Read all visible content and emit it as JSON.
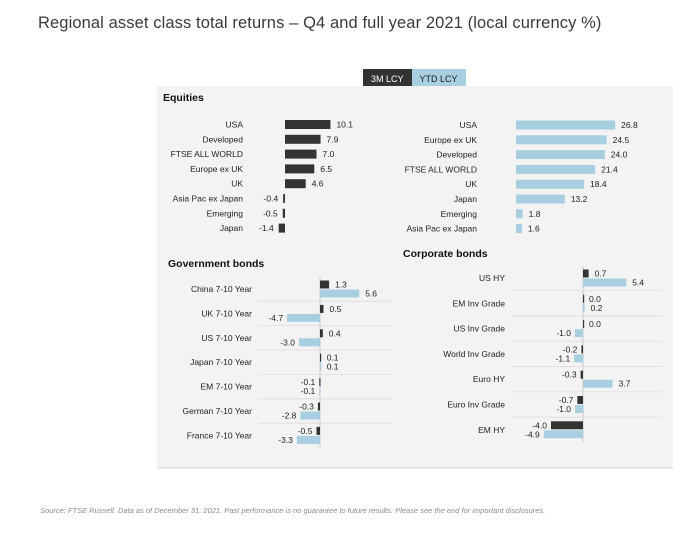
{
  "title": "Regional asset class total returns – Q4 and full year 2021 (local currency %)",
  "legend": {
    "series1": "3M LCY",
    "series2": "YTD LCY"
  },
  "footer": "Source: FTSE Russell. Data as of December 31, 2021. Past performance is no guarantee to future results. Please see the end for important disclosures.",
  "colors": {
    "series1": "#333333",
    "series2": "#a8cfe0"
  },
  "chart_data": [
    {
      "type": "bar",
      "title": "Equities",
      "subtitle": "3M LCY",
      "categories": [
        "USA",
        "Developed",
        "FTSE ALL WORLD",
        "Europe ex UK",
        "UK",
        "Asia Pac ex Japan",
        "Emerging",
        "Japan"
      ],
      "values": [
        10.1,
        7.9,
        7.0,
        6.5,
        4.6,
        -0.4,
        -0.5,
        -1.4
      ],
      "value_labels": [
        "10.1",
        "7.9",
        "7.0",
        "6.5",
        "4.6",
        "-0.4",
        "-0.5",
        "-1.4"
      ]
    },
    {
      "type": "bar",
      "title": "",
      "subtitle": "YTD LCY",
      "categories": [
        "USA",
        "Europe ex UK",
        "Developed",
        "FTSE ALL WORLD",
        "UK",
        "Japan",
        "Emerging",
        "Asia Pac ex Japan"
      ],
      "values": [
        26.8,
        24.5,
        24.0,
        21.4,
        18.4,
        13.2,
        1.8,
        1.6
      ],
      "value_labels": [
        "26.8",
        "24.5",
        "24.0",
        "21.4",
        "18.4",
        "13.2",
        "1.8",
        "1.6"
      ]
    },
    {
      "type": "bar",
      "title": "Government bonds",
      "categories": [
        "China 7-10 Year",
        "UK 7-10 Year",
        "US 7-10 Year",
        "Japan 7-10 Year",
        "EM 7-10 Year",
        "German 7-10 Year",
        "France 7-10 Year"
      ],
      "series": [
        {
          "name": "3M LCY",
          "values": [
            1.3,
            0.5,
            0.4,
            0.1,
            -0.1,
            -0.3,
            -0.5
          ],
          "labels": [
            "1.3",
            "0.5",
            "0.4",
            "0.1",
            "-0.1",
            "-0.3",
            "-0.5"
          ]
        },
        {
          "name": "YTD LCY",
          "values": [
            5.6,
            -4.7,
            -3.0,
            0.1,
            -0.1,
            -2.8,
            -3.3
          ],
          "labels": [
            "5.6",
            "-4.7",
            "-3.0",
            "0.1",
            "-0.1",
            "-2.8",
            "-3.3"
          ]
        }
      ]
    },
    {
      "type": "bar",
      "title": "Corporate bonds",
      "categories": [
        "US HY",
        "EM Inv Grade",
        "US Inv Grade",
        "World Inv Grade",
        "Euro HY",
        "Euro Inv Grade",
        "EM HY"
      ],
      "series": [
        {
          "name": "3M LCY",
          "values": [
            0.7,
            0.0,
            0.0,
            -0.2,
            -0.3,
            -0.7,
            -4.0
          ],
          "labels": [
            "0.7",
            "0.0",
            "0.0",
            "-0.2",
            "-0.3",
            "-0.7",
            "-4.0"
          ]
        },
        {
          "name": "YTD LCY",
          "values": [
            5.4,
            0.2,
            -1.0,
            -1.1,
            3.7,
            -1.0,
            -4.9
          ],
          "labels": [
            "5.4",
            "0.2",
            "-1.0",
            "-1.1",
            "3.7",
            "-1.0",
            "-4.9"
          ]
        }
      ]
    }
  ]
}
